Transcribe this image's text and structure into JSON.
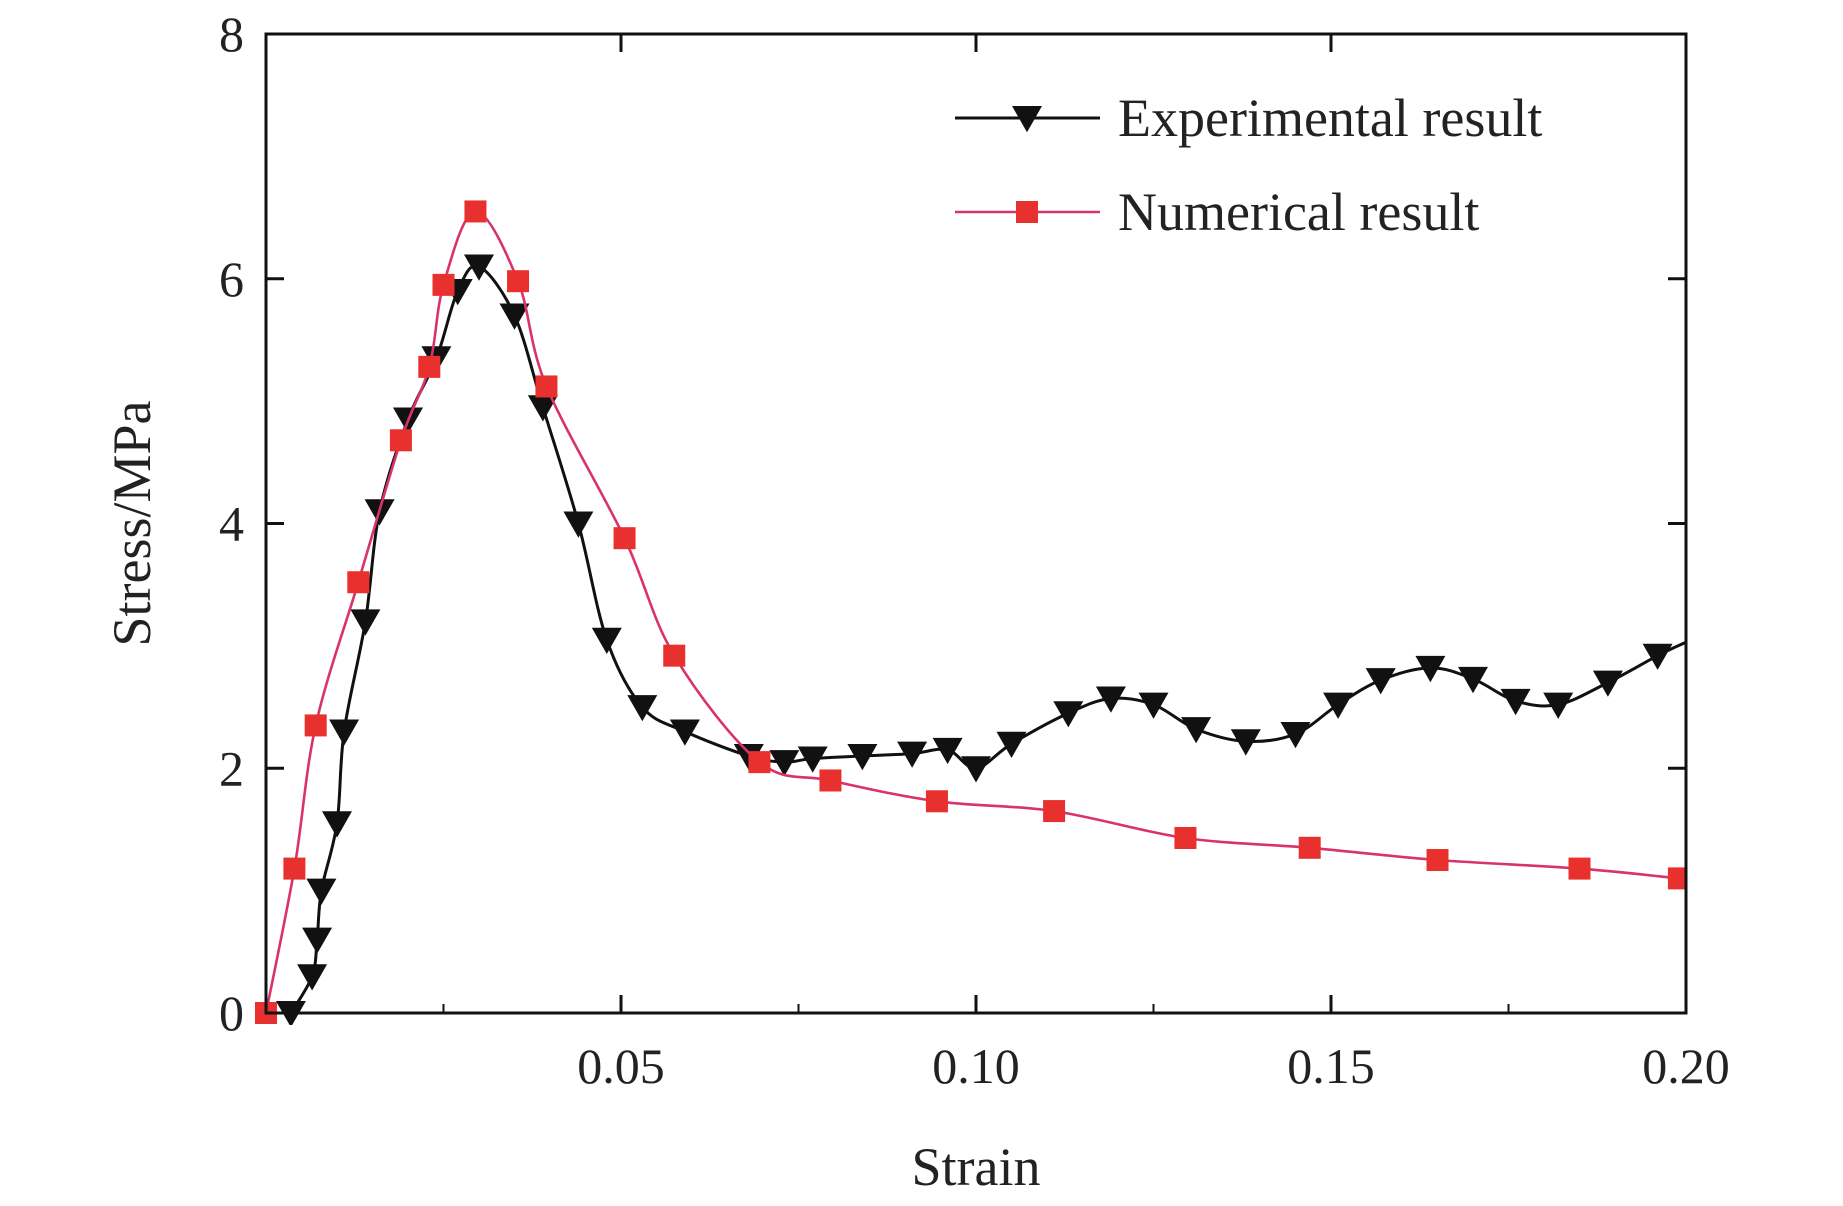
{
  "chart_data": {
    "type": "line",
    "title": "",
    "xlabel": "Strain",
    "ylabel": "Stress/MPa",
    "xlim": [
      0,
      0.2
    ],
    "ylim": [
      0,
      8
    ],
    "x_ticks": [
      0.05,
      0.1,
      0.15,
      0.2
    ],
    "x_tick_labels": [
      "0.05",
      "0.10",
      "0.15",
      "0.20"
    ],
    "y_ticks": [
      0,
      2,
      4,
      6,
      8
    ],
    "y_tick_labels": [
      "0",
      "2",
      "4",
      "6",
      "8"
    ],
    "grid": false,
    "legend_position": "top-right",
    "series": [
      {
        "name": "Experimental result",
        "color": "#111111",
        "marker": "triangle-down",
        "x": [
          0.0035,
          0.0065,
          0.0072,
          0.0078,
          0.01,
          0.011,
          0.014,
          0.016,
          0.02,
          0.024,
          0.027,
          0.03,
          0.035,
          0.039,
          0.044,
          0.048,
          0.053,
          0.059,
          0.068,
          0.073,
          0.077,
          0.084,
          0.091,
          0.096,
          0.1,
          0.105,
          0.113,
          0.119,
          0.125,
          0.131,
          0.138,
          0.145,
          0.151,
          0.157,
          0.164,
          0.17,
          0.176,
          0.182,
          0.189,
          0.196
        ],
        "y": [
          0.0,
          0.3,
          0.6,
          1.0,
          1.55,
          2.3,
          3.2,
          4.1,
          4.85,
          5.35,
          5.9,
          6.1,
          5.7,
          4.95,
          4.0,
          3.05,
          2.5,
          2.3,
          2.1,
          2.05,
          2.08,
          2.1,
          2.12,
          2.15,
          2.0,
          2.2,
          2.45,
          2.57,
          2.52,
          2.32,
          2.22,
          2.28,
          2.52,
          2.72,
          2.82,
          2.73,
          2.55,
          2.52,
          2.7,
          2.92
        ]
      },
      {
        "name": "Numerical result",
        "color": "#e8302e",
        "line_color": "#d8336a",
        "marker": "square",
        "x": [
          0.0,
          0.004,
          0.007,
          0.013,
          0.019,
          0.023,
          0.025,
          0.0295,
          0.0355,
          0.0395,
          0.0505,
          0.0575,
          0.0695,
          0.0795,
          0.0945,
          0.111,
          0.1295,
          0.147,
          0.165,
          0.185,
          0.199
        ],
        "y": [
          0.0,
          1.18,
          2.35,
          3.52,
          4.68,
          5.28,
          5.95,
          6.55,
          5.98,
          5.12,
          3.88,
          2.92,
          2.05,
          1.9,
          1.73,
          1.65,
          1.43,
          1.35,
          1.25,
          1.18,
          1.1
        ]
      }
    ]
  }
}
